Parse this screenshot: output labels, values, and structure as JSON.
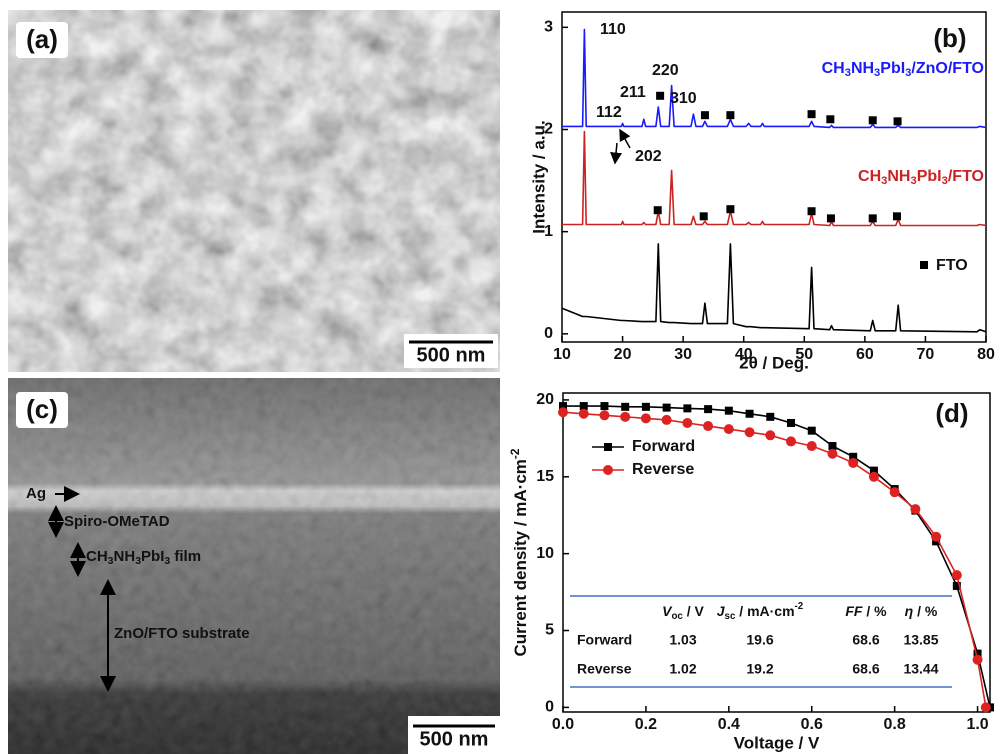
{
  "images": [
    {
      "label": "(a)",
      "scale_bar": "500 nm"
    },
    {
      "label": "(c)",
      "scale_bar": "500 nm",
      "layers": [
        "Ag",
        "Spiro-OMeTAD",
        "CH3NH3PbI3 film",
        "ZnO/FTO substrate"
      ]
    }
  ],
  "chart_data": [
    {
      "type": "line",
      "panel_label": "(b)",
      "x_label": "2θ / Deg.",
      "y_label": "Intensity / a.u.",
      "xlim": [
        10,
        80
      ],
      "ylim": [
        -0.08,
        3.15
      ],
      "xticks": [
        10,
        20,
        30,
        40,
        50,
        60,
        70,
        80
      ],
      "yticks": [
        0,
        1,
        2,
        3
      ],
      "x": [
        10,
        13.4,
        13.7,
        14,
        19.8,
        20,
        20.2,
        23.2,
        23.5,
        23.8,
        25.5,
        25.9,
        26.3,
        27.7,
        28.1,
        28.5,
        31.3,
        31.7,
        32.1,
        33.2,
        33.6,
        34,
        37.3,
        37.8,
        38.3,
        40.4,
        40.8,
        41.2,
        42.8,
        43.1,
        43.4,
        50.8,
        51.2,
        51.6,
        54.2,
        54.5,
        54.8,
        60.9,
        61.3,
        61.7,
        65.1,
        65.5,
        65.9,
        78.5,
        79,
        80
      ],
      "series": [
        {
          "color": "#000000",
          "values": [
            0.25,
            0.17,
            0.17,
            0.17,
            0.13,
            0.13,
            0.13,
            0.12,
            0.12,
            0.12,
            0.12,
            0.88,
            0.12,
            0.11,
            0.11,
            0.11,
            0.1,
            0.1,
            0.1,
            0.1,
            0.3,
            0.1,
            0.1,
            0.88,
            0.1,
            0.07,
            0.07,
            0.07,
            0.06,
            0.06,
            0.06,
            0.05,
            0.65,
            0.05,
            0.04,
            0.08,
            0.04,
            0.03,
            0.13,
            0.03,
            0.03,
            0.28,
            0.03,
            0.02,
            0.04,
            0.02
          ]
        },
        {
          "name": "CH3NH3PbI3/FTO",
          "color": "#cc2222",
          "values": [
            1.07,
            1.07,
            1.98,
            1.07,
            1.07,
            1.1,
            1.07,
            1.07,
            1.09,
            1.07,
            1.07,
            1.2,
            1.07,
            1.07,
            1.6,
            1.07,
            1.07,
            1.15,
            1.07,
            1.07,
            1.1,
            1.07,
            1.07,
            1.2,
            1.07,
            1.07,
            1.09,
            1.07,
            1.07,
            1.1,
            1.07,
            1.07,
            1.18,
            1.07,
            1.06,
            1.1,
            1.06,
            1.06,
            1.1,
            1.06,
            1.06,
            1.12,
            1.06,
            1.06,
            1.07,
            1.06
          ]
        },
        {
          "name": "CH3NH3PbI3/ZnO/FTO",
          "color": "#1a1aff",
          "values": [
            2.03,
            2.03,
            2.98,
            2.03,
            2.03,
            2.06,
            2.03,
            2.03,
            2.1,
            2.03,
            2.03,
            2.22,
            2.03,
            2.03,
            2.43,
            2.03,
            2.03,
            2.15,
            2.03,
            2.03,
            2.08,
            2.03,
            2.03,
            2.1,
            2.03,
            2.03,
            2.06,
            2.03,
            2.03,
            2.06,
            2.03,
            2.03,
            2.08,
            2.03,
            2.02,
            2.04,
            2.02,
            2.02,
            2.05,
            2.02,
            2.02,
            2.04,
            2.02,
            2.02,
            2.03,
            2.02
          ]
        }
      ],
      "fto_markers": {
        "name": "FTO",
        "x": [
          26.2,
          33.6,
          37.8,
          51.2,
          54.3,
          61.3,
          65.4,
          25.8,
          33.4,
          37.8,
          51.2,
          54.4,
          61.3,
          65.3
        ],
        "y": [
          2.33,
          2.14,
          2.14,
          2.15,
          2.1,
          2.09,
          2.08,
          1.21,
          1.15,
          1.22,
          1.2,
          1.13,
          1.13,
          1.15
        ]
      },
      "annotations": [
        "110",
        "112",
        "211",
        "220",
        "310",
        "202"
      ]
    },
    {
      "type": "line",
      "panel_label": "(d)",
      "x_label": "Voltage / V",
      "y_label": "Current density / mA·cm-2",
      "xlim": [
        0,
        1.03
      ],
      "ylim": [
        -0.3,
        20.45
      ],
      "xticks": [
        {
          "value": 0,
          "label": "0.0"
        },
        0.2,
        0.4,
        0.6,
        0.8,
        {
          "value": 1,
          "label": "1.0"
        }
      ],
      "yticks": [
        0,
        5,
        10,
        15,
        20
      ],
      "legend": "upper left",
      "series": [
        {
          "name": "Forward",
          "color": "#000000",
          "marker": "square",
          "x": [
            0,
            0.05,
            0.1,
            0.15,
            0.2,
            0.25,
            0.3,
            0.35,
            0.4,
            0.45,
            0.5,
            0.55,
            0.6,
            0.65,
            0.7,
            0.75,
            0.8,
            0.85,
            0.9,
            0.95,
            1.0,
            1.03
          ],
          "values": [
            19.6,
            19.6,
            19.6,
            19.55,
            19.55,
            19.5,
            19.45,
            19.4,
            19.3,
            19.1,
            18.9,
            18.5,
            18.0,
            17.0,
            16.3,
            15.4,
            14.2,
            12.8,
            10.8,
            7.9,
            3.5,
            0
          ]
        },
        {
          "name": "Reverse",
          "color": "#dd2222",
          "marker": "circle",
          "x": [
            0,
            0.05,
            0.1,
            0.15,
            0.2,
            0.25,
            0.3,
            0.35,
            0.4,
            0.45,
            0.5,
            0.55,
            0.6,
            0.65,
            0.7,
            0.75,
            0.8,
            0.85,
            0.9,
            0.95,
            1.0,
            1.02
          ],
          "values": [
            19.2,
            19.1,
            19.0,
            18.9,
            18.8,
            18.7,
            18.5,
            18.3,
            18.1,
            17.9,
            17.7,
            17.3,
            17.0,
            16.5,
            15.9,
            15.0,
            14.0,
            12.9,
            11.1,
            8.6,
            3.1,
            0
          ]
        }
      ],
      "table": {
        "header": [
          "Voc / V",
          "Jsc / mA·cm-2",
          "FF / %",
          "η / %"
        ],
        "rows": [
          [
            "Forward",
            1.03,
            19.6,
            68.6,
            13.85
          ],
          [
            "Reverse",
            1.02,
            19.2,
            68.6,
            13.44
          ]
        ]
      }
    }
  ]
}
